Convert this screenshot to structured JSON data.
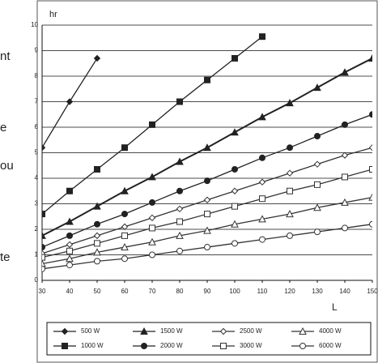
{
  "side_text": [
    "nt",
    "e",
    "ou",
    "te"
  ],
  "chart_data": {
    "type": "line",
    "ylabel": "hr",
    "xlabel": "L",
    "x": [
      30,
      40,
      50,
      60,
      70,
      80,
      90,
      100,
      110,
      120,
      130,
      140,
      150
    ],
    "xlim": [
      30,
      150
    ],
    "xticks": [
      30,
      40,
      50,
      60,
      70,
      80,
      90,
      100,
      110,
      120,
      130,
      140,
      150
    ],
    "ylim": [
      0,
      10
    ],
    "yticks": [
      0,
      1,
      2,
      3,
      4,
      5,
      6,
      7,
      8,
      9,
      10
    ],
    "grid": true,
    "legend": "bottom",
    "series": [
      {
        "name": "500 W",
        "color": "#222222",
        "marker": "diamond-filled",
        "values": [
          5.2,
          7.0,
          8.7,
          null,
          null,
          null,
          null,
          null,
          null,
          null,
          null,
          null,
          null
        ]
      },
      {
        "name": "1000 W",
        "color": "#222222",
        "marker": "square-filled",
        "values": [
          2.6,
          3.5,
          4.35,
          5.2,
          6.1,
          7.0,
          7.85,
          8.7,
          9.55,
          null,
          null,
          null,
          null
        ]
      },
      {
        "name": "1500 W",
        "color": "#222222",
        "marker": "triangle-filled",
        "values": [
          1.75,
          2.3,
          2.9,
          3.5,
          4.05,
          4.65,
          5.2,
          5.8,
          6.4,
          6.95,
          7.55,
          8.15,
          8.7
        ]
      },
      {
        "name": "2000 W",
        "color": "#222222",
        "marker": "circle-filled",
        "values": [
          1.3,
          1.75,
          2.2,
          2.6,
          3.05,
          3.5,
          3.9,
          4.35,
          4.8,
          5.2,
          5.65,
          6.1,
          6.5
        ]
      },
      {
        "name": "2500 W",
        "color": "#333333",
        "marker": "diamond-open",
        "values": [
          1.05,
          1.4,
          1.75,
          2.1,
          2.45,
          2.8,
          3.15,
          3.5,
          3.85,
          4.2,
          4.55,
          4.9,
          5.2
        ]
      },
      {
        "name": "3000 W",
        "color": "#333333",
        "marker": "square-open",
        "values": [
          0.9,
          1.15,
          1.45,
          1.75,
          2.05,
          2.3,
          2.6,
          2.9,
          3.2,
          3.5,
          3.75,
          4.05,
          4.35
        ]
      },
      {
        "name": "4000 W",
        "color": "#333333",
        "marker": "triangle-open",
        "values": [
          0.65,
          0.85,
          1.1,
          1.3,
          1.5,
          1.75,
          1.95,
          2.2,
          2.4,
          2.6,
          2.85,
          3.05,
          3.25
        ]
      },
      {
        "name": "6000 W",
        "color": "#333333",
        "marker": "circle-open",
        "values": [
          0.45,
          0.6,
          0.75,
          0.85,
          1.0,
          1.15,
          1.3,
          1.45,
          1.6,
          1.75,
          1.9,
          2.05,
          2.2
        ]
      }
    ]
  }
}
